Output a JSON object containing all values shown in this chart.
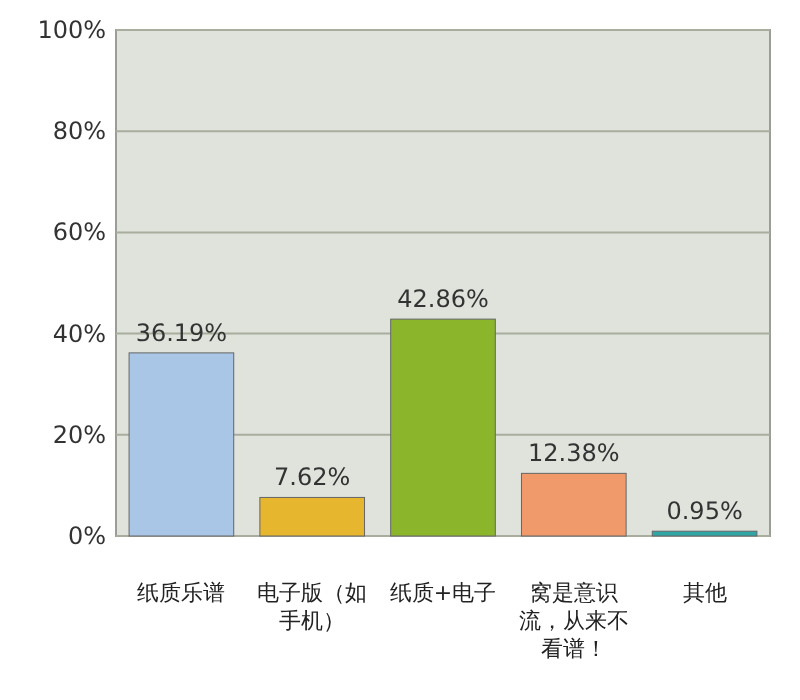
{
  "chart_data": {
    "type": "bar",
    "categories": [
      "纸质乐谱",
      "电子版（如手机）",
      "纸质+电子",
      "窝是意识流，从来不看谱！",
      "其他"
    ],
    "values": [
      36.19,
      7.62,
      42.86,
      12.38,
      0.95
    ],
    "colors": [
      "#a9c6e6",
      "#e6b62e",
      "#8bb52a",
      "#f09a6c",
      "#2fa6a6"
    ],
    "value_labels": [
      "36.19%",
      "7.62%",
      "42.86%",
      "12.38%",
      "0.95%"
    ],
    "grid": "y",
    "ylim": [
      0,
      100
    ],
    "yticks": [
      {
        "value": 0,
        "label": "0%"
      },
      {
        "value": 20,
        "label": "20%"
      },
      {
        "value": 40,
        "label": "40%"
      },
      {
        "value": 60,
        "label": "60%"
      },
      {
        "value": 80,
        "label": "80%"
      },
      {
        "value": 100,
        "label": "100%"
      }
    ]
  }
}
